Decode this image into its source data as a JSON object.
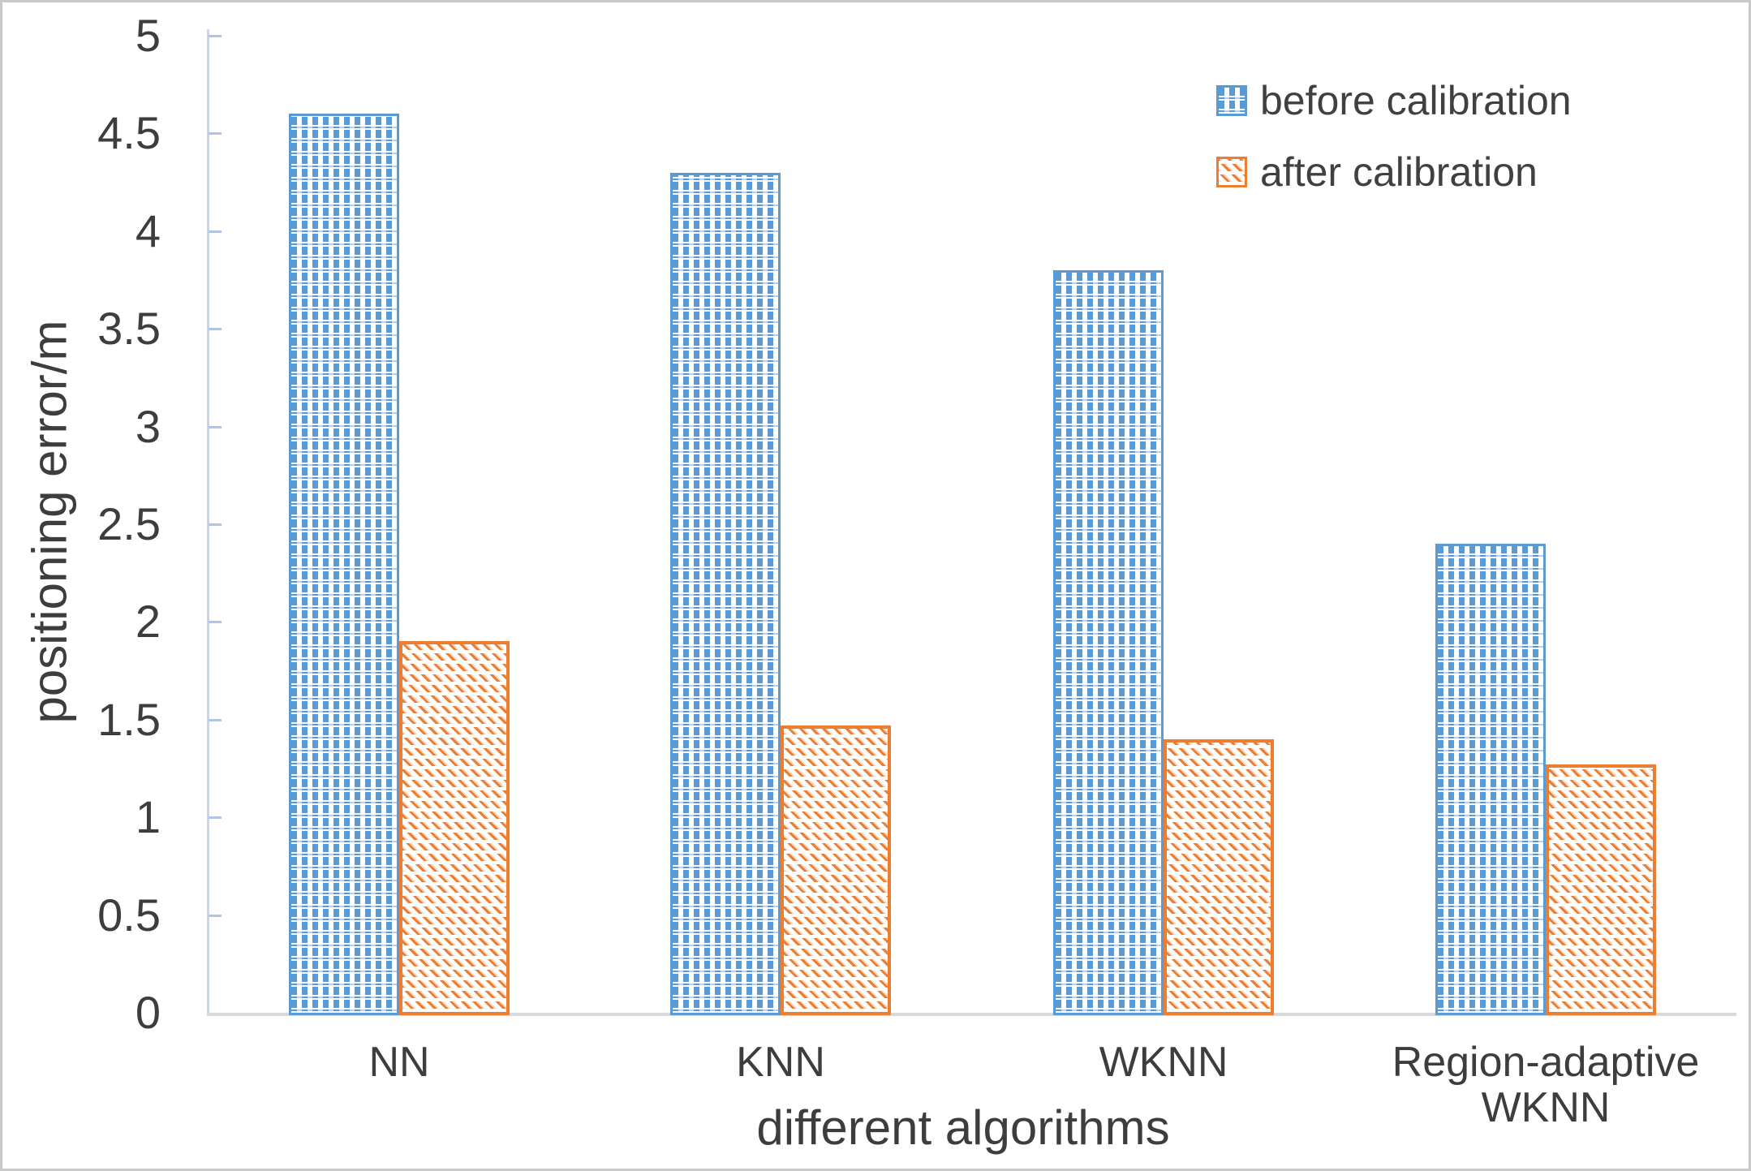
{
  "chart_data": {
    "type": "bar",
    "title": "",
    "categories": [
      "NN",
      "KNN",
      "WKNN",
      "Region-adaptive\nWKNN"
    ],
    "series": [
      {
        "name": "before calibration",
        "values": [
          4.6,
          4.3,
          3.8,
          2.4
        ],
        "color": "#5b9bd5",
        "pattern": "checker"
      },
      {
        "name": "after calibration",
        "values": [
          1.9,
          1.47,
          1.4,
          1.27
        ],
        "color": "#ed7d31",
        "pattern": "diagonal-dash"
      }
    ],
    "xlabel": "different algorithms",
    "ylabel": "positioning error/m",
    "ylim": [
      0,
      5
    ],
    "ytick_step": 0.5,
    "yticks": [
      "0",
      "0.5",
      "1",
      "1.5",
      "2",
      "2.5",
      "3",
      "3.5",
      "4",
      "4.5",
      "5"
    ],
    "legend_position": "top-right",
    "grid": false
  },
  "colors": {
    "before_bar": "#5b9bd5",
    "after_bar": "#ed7d31",
    "axis_line": "#c7d5ef",
    "tick_mark": "#aec5e8",
    "baseline": "#d9d9d9",
    "text": "#3d3d3d",
    "frame": "#c9c9c9"
  }
}
